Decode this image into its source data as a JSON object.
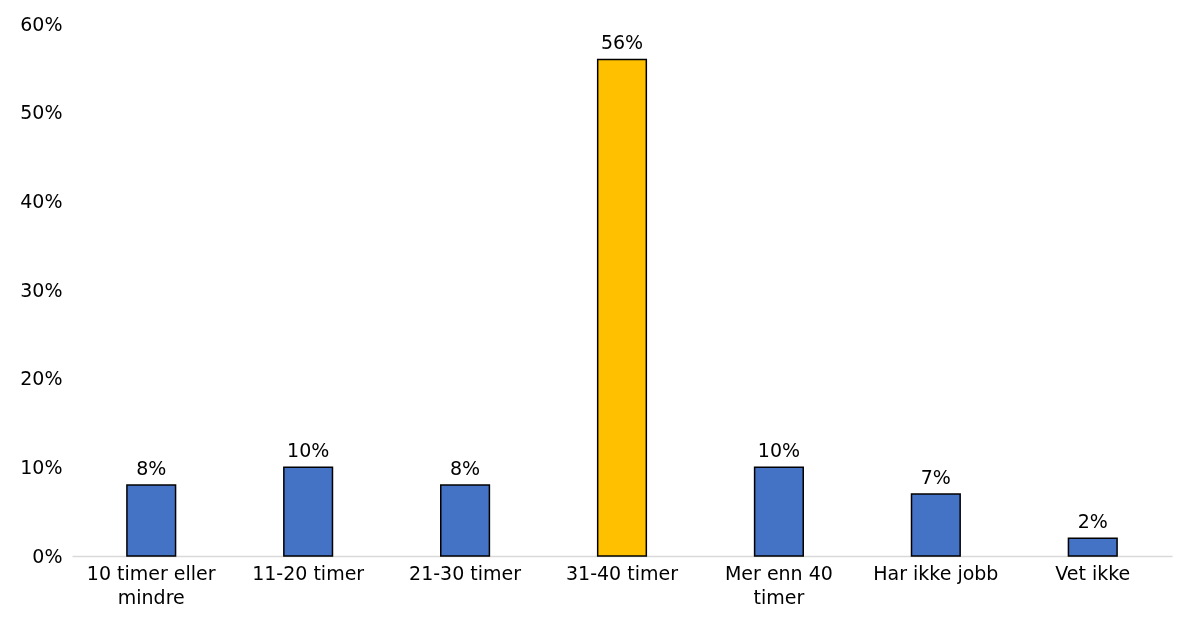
{
  "chart_data": {
    "type": "bar",
    "categories": [
      "10 timer eller mindre",
      "11-20 timer",
      "21-30 timer",
      "31-40 timer",
      "Mer enn 40 timer",
      "Har ikke jobb",
      "Vet ikke"
    ],
    "values": [
      8,
      10,
      8,
      56,
      10,
      7,
      2
    ],
    "colors": [
      "#4472c4",
      "#4472c4",
      "#4472c4",
      "#ffc000",
      "#4472c4",
      "#4472c4",
      "#4472c4"
    ],
    "value_labels": [
      "8%",
      "10%",
      "8%",
      "56%",
      "10%",
      "7%",
      "2%"
    ],
    "ylim": [
      0,
      60
    ],
    "yticks": [
      {
        "value": 0,
        "label": "0%"
      },
      {
        "value": 10,
        "label": "10%"
      },
      {
        "value": 20,
        "label": "20%"
      },
      {
        "value": 30,
        "label": "30%"
      },
      {
        "value": 40,
        "label": "40%"
      },
      {
        "value": 50,
        "label": "50%"
      },
      {
        "value": 60,
        "label": "60%"
      }
    ],
    "grid": false
  }
}
